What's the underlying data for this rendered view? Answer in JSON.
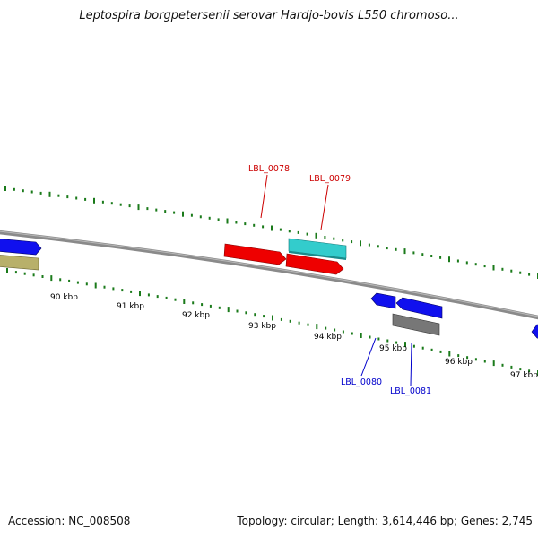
{
  "title": "Leptospira borgpetersenii serovar Hardjo-bovis L550 chromoso...",
  "footer": {
    "accession": "Accession: NC_008508",
    "stats": "Topology: circular; Length: 3,614,446 bp; Genes: 2,745"
  },
  "scale_labels": [
    "90 kbp",
    "91 kbp",
    "92 kbp",
    "93 kbp",
    "94 kbp",
    "95 kbp",
    "96 kbp",
    "97 kbp"
  ],
  "genes": [
    {
      "label": "LBL_0078",
      "color": "#cc0000"
    },
    {
      "label": "LBL_0079",
      "color": "#cc0000"
    },
    {
      "label": "LBL_0080",
      "color": "#0000cc"
    },
    {
      "label": "LBL_0081",
      "color": "#0000cc"
    }
  ],
  "colors": {
    "backbone": "#8a8a8a",
    "ticks": "#1a7a1a",
    "forward_strand": "#ee0000",
    "reverse_strand": "#1010ee",
    "cyan_feature": "#33cccc",
    "gray_feature": "#777777",
    "olive_feature": "#b8b06a"
  }
}
